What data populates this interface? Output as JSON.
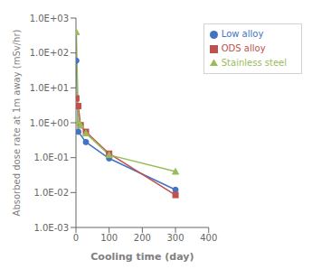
{
  "chart_data": {
    "type": "line",
    "title": "",
    "xlabel": "Cooling time (day)",
    "ylabel": "Absorbed dose rate at 1m away (mSv/hr)",
    "log": "y",
    "grid": false,
    "legend": "upper right",
    "xlim": [
      0,
      400
    ],
    "xticks": [
      0,
      100,
      200,
      300,
      400
    ],
    "ylim": [
      0.001,
      1000
    ],
    "yticks": [
      {
        "value": 0.001,
        "label": "1.0E-03"
      },
      {
        "value": 0.01,
        "label": "1.0E-02"
      },
      {
        "value": 0.1,
        "label": "1.0E-01"
      },
      {
        "value": 1.0,
        "label": "1.0E+00"
      },
      {
        "value": 10.0,
        "label": "1.0E+01"
      },
      {
        "value": 100.0,
        "label": "1.0E+02"
      },
      {
        "value": 1000.0,
        "label": "1.0E+03"
      }
    ],
    "series": [
      {
        "name": "Low alloy",
        "color": "#4472C4",
        "marker": "circle",
        "x": [
          1,
          7,
          30,
          100,
          300
        ],
        "values": [
          60.0,
          0.55,
          0.28,
          0.095,
          0.012
        ]
      },
      {
        "name": "ODS alloy",
        "color": "#C0504D",
        "marker": "square",
        "x": [
          1,
          7,
          14,
          30,
          100,
          300
        ],
        "values": [
          5.0,
          3.0,
          0.85,
          0.55,
          0.13,
          0.0085
        ]
      },
      {
        "name": "Stainless steel",
        "color": "#9BBB59",
        "marker": "triangle",
        "x": [
          1,
          7,
          14,
          30,
          100,
          300
        ],
        "values": [
          400.0,
          1.1,
          0.85,
          0.5,
          0.12,
          0.04
        ]
      }
    ]
  }
}
